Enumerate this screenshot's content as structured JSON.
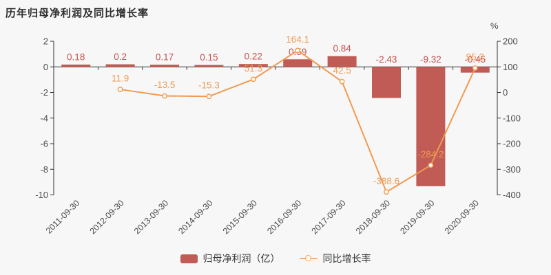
{
  "title": "历年归母净利润及同比增长率",
  "legend": {
    "bar_label": "归母净利润（亿）",
    "line_label": "同比增长率"
  },
  "chart_data": {
    "type": "bar+line",
    "categories": [
      "2011-09-30",
      "2012-09-30",
      "2013-09-30",
      "2014-09-30",
      "2015-09-30",
      "2016-09-30",
      "2017-09-30",
      "2018-09-30",
      "2019-09-30",
      "2020-09-30"
    ],
    "series": [
      {
        "name": "归母净利润（亿）",
        "type": "bar",
        "axis": "left",
        "values": [
          0.18,
          0.2,
          0.17,
          0.15,
          0.22,
          0.59,
          0.84,
          -2.43,
          -9.32,
          -0.45
        ]
      },
      {
        "name": "同比增长率",
        "type": "line",
        "axis": "right",
        "values": [
          null,
          11.9,
          -13.5,
          -15.3,
          51.3,
          164.1,
          42.5,
          -388.6,
          -284.2,
          95.2
        ]
      }
    ],
    "left_axis": {
      "ticks": [
        2,
        0,
        -2,
        -4,
        -6,
        -8,
        -10
      ],
      "max": 2,
      "min": -10
    },
    "right_axis": {
      "unit": "%",
      "ticks": [
        200,
        100,
        0,
        -100,
        -200,
        -300,
        -400
      ],
      "max": 200,
      "min": -400
    },
    "grid": false,
    "legend_position": "bottom"
  },
  "colors": {
    "bar": "#c05b55",
    "bar_label": "#c9504c",
    "line": "#f19a50",
    "marker_fill": "#fffdf6",
    "axis": "#333333",
    "tick_text": "#4d4d4d",
    "background": "#f7f7f8"
  }
}
